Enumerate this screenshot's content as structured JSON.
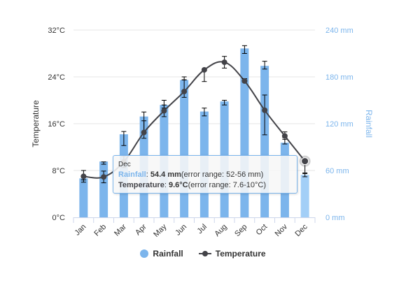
{
  "chart_data": {
    "type": "bar",
    "title": "",
    "categories": [
      "Jan",
      "Feb",
      "Mar",
      "Apr",
      "May",
      "Jun",
      "Jul",
      "Aug",
      "Sep",
      "Oct",
      "Nov",
      "Dec"
    ],
    "series": [
      {
        "name": "Rainfall",
        "type": "bar",
        "axis": "right",
        "unit": "mm",
        "color": "#7cb5ec",
        "values": [
          49.9,
          71.5,
          106.4,
          129.2,
          144.0,
          176.0,
          135.6,
          148.5,
          216.4,
          194.1,
          95.6,
          54.4
        ],
        "error_low": [
          48,
          68,
          92,
          110,
          140,
          176,
          130,
          144,
          210,
          190,
          94,
          52
        ],
        "error_high": [
          52,
          71,
          110,
          135,
          150,
          180,
          140,
          150,
          220,
          200,
          100,
          56
        ]
      },
      {
        "name": "Temperature",
        "type": "line",
        "axis": "left",
        "unit": "°C",
        "color": "#434348",
        "values": [
          7.0,
          6.9,
          9.5,
          14.5,
          18.2,
          21.5,
          25.2,
          26.5,
          23.3,
          18.3,
          13.9,
          9.6
        ],
        "error_low": [
          6,
          5.9,
          8.5,
          13.5,
          17.2,
          20.5,
          23.2,
          25.5,
          23.1,
          14.1,
          13.6,
          7.6
        ],
        "error_high": [
          8,
          7.9,
          10.5,
          16.5,
          19.2,
          23.5,
          25.2,
          27.5,
          23.7,
          20.9,
          14.6,
          10
        ]
      }
    ],
    "y_left": {
      "label": "Temperature",
      "ylim": [
        0,
        32
      ],
      "ticks": [
        "0°C",
        "8°C",
        "16°C",
        "24°C",
        "32°C"
      ],
      "tick_values": [
        0,
        8,
        16,
        24,
        32
      ]
    },
    "y_right": {
      "label": "Rainfall",
      "ylim": [
        0,
        240
      ],
      "ticks": [
        "0 mm",
        "60 mm",
        "120 mm",
        "180 mm",
        "240 mm"
      ],
      "tick_values": [
        0,
        60,
        120,
        180,
        240
      ]
    },
    "grid": true,
    "legend_position": "bottom-center",
    "highlighted_category": "Dec"
  },
  "legend": {
    "rainfall_label": "Rainfall",
    "temperature_label": "Temperature"
  },
  "tooltip": {
    "header": "Dec",
    "rain_name": "Rainfall",
    "rain_value": "54.4 mm",
    "rain_error": "(error range: 52-56 mm)",
    "temp_name": "Temperature",
    "temp_value": "9.6°C",
    "temp_error": "(error range: 7.6-10°C)"
  }
}
